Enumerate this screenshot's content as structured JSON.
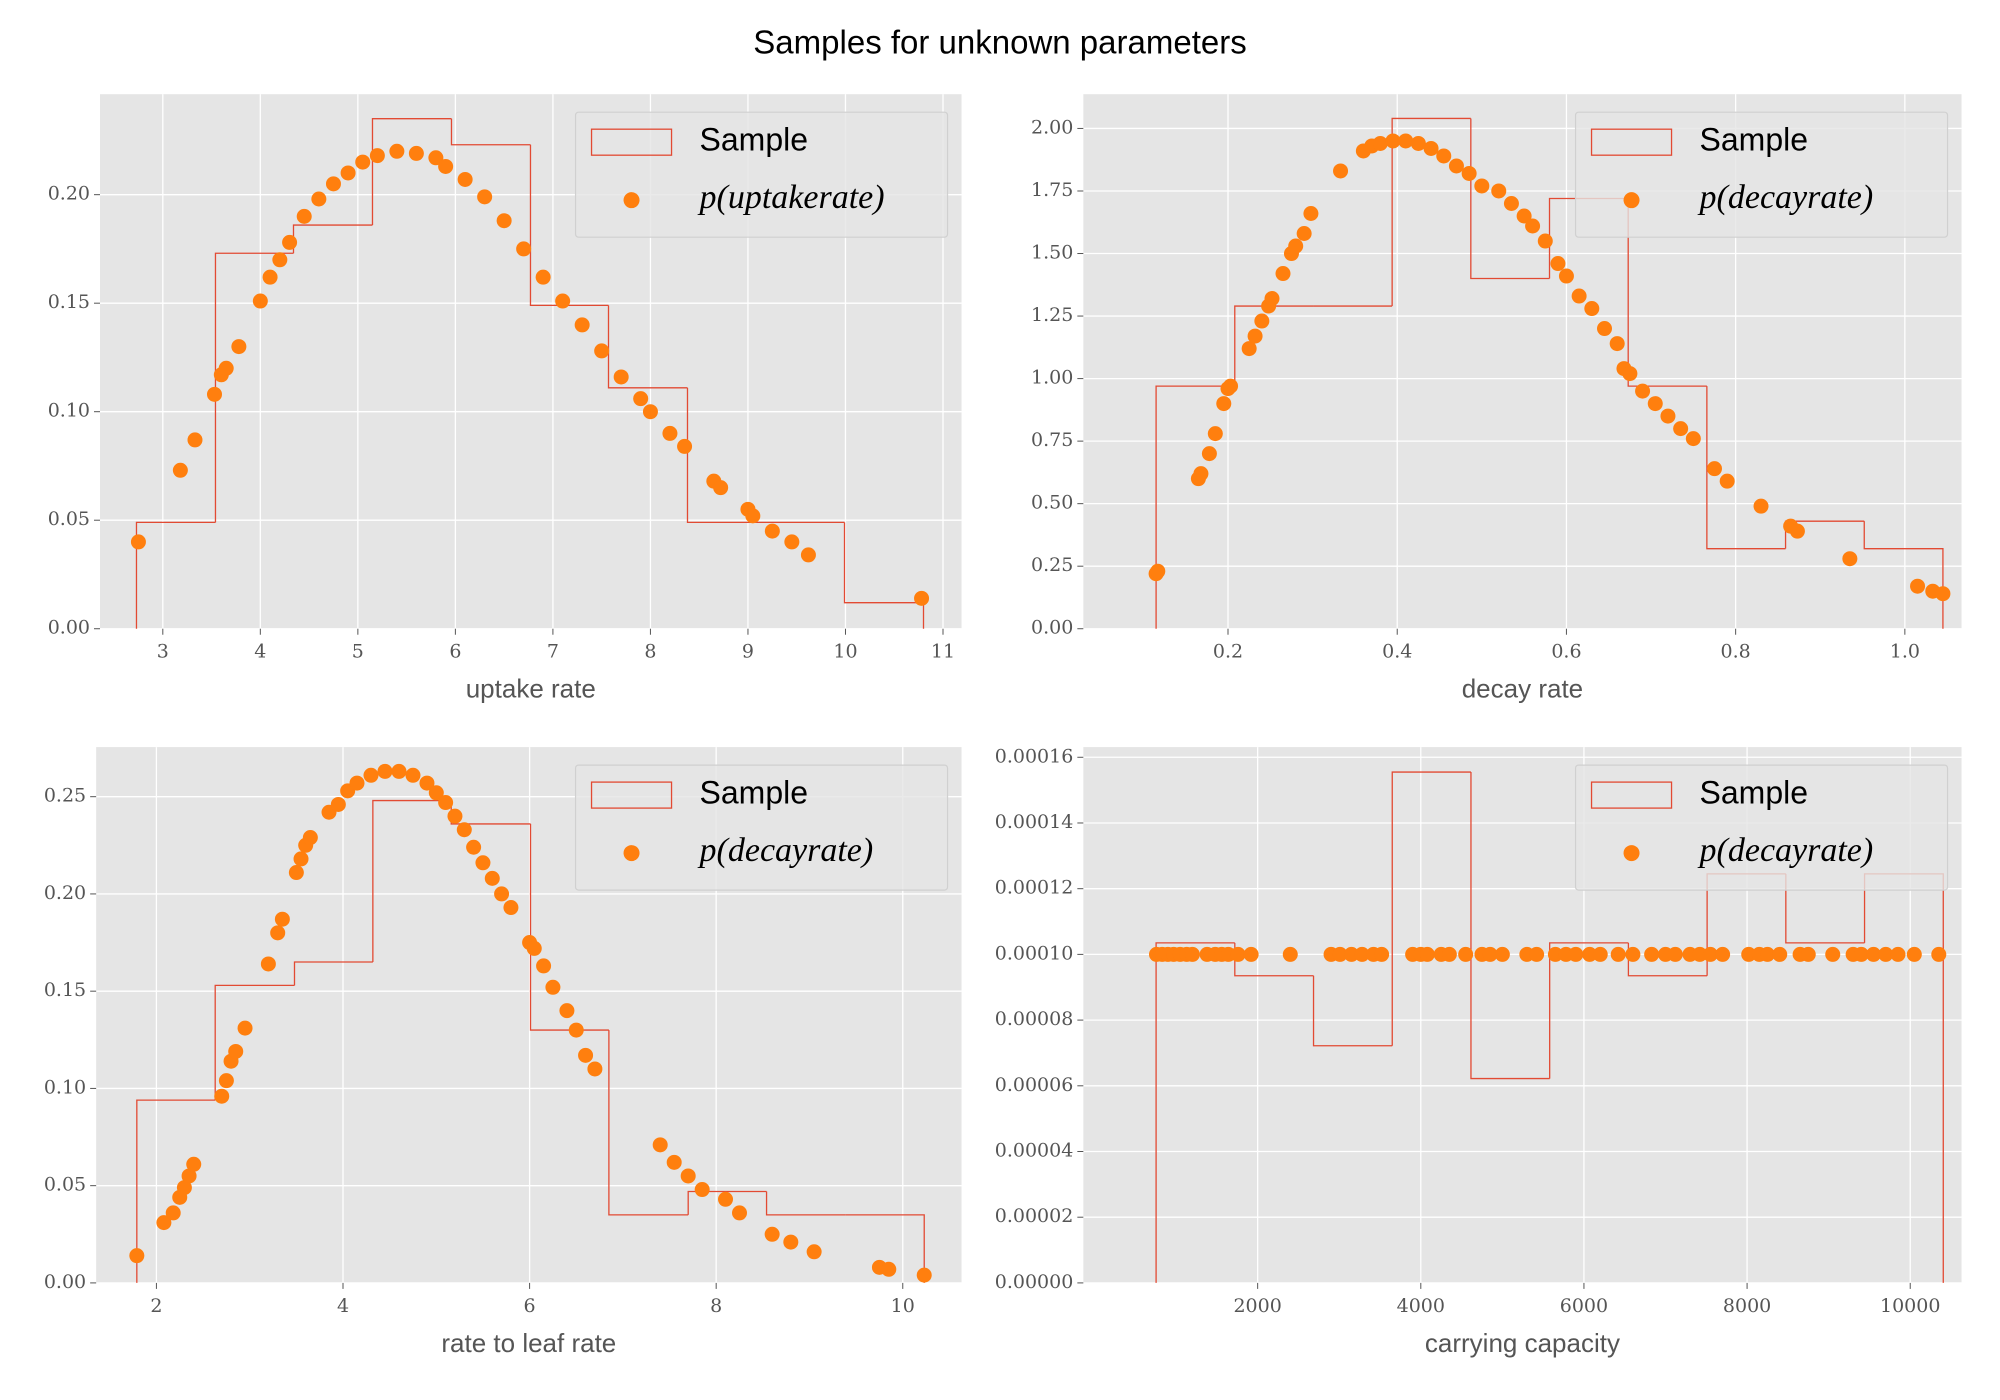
{
  "title": "Samples for unknown parameters",
  "chart_data": [
    {
      "type": "histogram",
      "xlabel": "uptake rate",
      "grid": true,
      "legend": "upper right",
      "xlim": [
        2.356,
        11.19
      ],
      "ylim": [
        0,
        0.2463
      ],
      "xticks": [
        3,
        4,
        5,
        6,
        7,
        8,
        9,
        10,
        11
      ],
      "yticks": [
        {
          "value": 0,
          "label": "0.00"
        },
        {
          "value": 0.05,
          "label": "0.05"
        },
        {
          "value": 0.1,
          "label": "0.10"
        },
        {
          "value": 0.15,
          "label": "0.15"
        },
        {
          "value": 0.2,
          "label": "0.20"
        }
      ],
      "series": [
        {
          "name": "Sample",
          "type": "histogram",
          "color": "#e24a33",
          "bins": [
            2.73,
            3.54,
            4.34,
            5.15,
            5.96,
            6.77,
            7.57,
            8.38,
            9.19,
            9.99,
            10.8
          ],
          "values": [
            0.049,
            0.173,
            0.186,
            0.235,
            0.223,
            0.149,
            0.111,
            0.049,
            0.049,
            0.012
          ]
        },
        {
          "name": "p(uptakerate)",
          "type": "scatter",
          "color": "#ff7f0e",
          "x": [
            2.75,
            3.18,
            3.33,
            3.53,
            3.6,
            3.65,
            3.78,
            4.0,
            4.1,
            4.2,
            4.3,
            4.45,
            4.6,
            4.75,
            4.9,
            5.05,
            5.2,
            5.4,
            5.6,
            5.8,
            5.9,
            6.1,
            6.3,
            6.5,
            6.7,
            6.9,
            7.1,
            7.3,
            7.5,
            7.7,
            7.9,
            8.0,
            8.2,
            8.35,
            8.65,
            8.72,
            9.0,
            9.05,
            9.25,
            9.45,
            9.62,
            10.78
          ],
          "values": [
            0.04,
            0.073,
            0.087,
            0.108,
            0.117,
            0.12,
            0.13,
            0.151,
            0.162,
            0.17,
            0.178,
            0.19,
            0.198,
            0.205,
            0.21,
            0.215,
            0.218,
            0.22,
            0.219,
            0.217,
            0.213,
            0.207,
            0.199,
            0.188,
            0.175,
            0.162,
            0.151,
            0.14,
            0.128,
            0.116,
            0.106,
            0.1,
            0.09,
            0.084,
            0.068,
            0.065,
            0.055,
            0.052,
            0.045,
            0.04,
            0.034,
            0.014
          ]
        }
      ]
    },
    {
      "type": "histogram",
      "xlabel": "decay rate",
      "grid": true,
      "legend": "upper right",
      "xlim": [
        0.029,
        1.067
      ],
      "ylim": [
        0,
        2.137
      ],
      "xticks": [
        0.2,
        0.4,
        0.6,
        0.8,
        {
          "value": 1,
          "label": "1.0"
        }
      ],
      "yticks": [
        {
          "value": 0,
          "label": "0.00"
        },
        {
          "value": 0.25,
          "label": "0.25"
        },
        {
          "value": 0.5,
          "label": "0.50"
        },
        {
          "value": 0.75,
          "label": "0.75"
        },
        {
          "value": 1,
          "label": "1.00"
        },
        {
          "value": 1.25,
          "label": "1.25"
        },
        {
          "value": 1.5,
          "label": "1.50"
        },
        {
          "value": 1.75,
          "label": "1.75"
        },
        {
          "value": 2,
          "label": "2.00"
        }
      ],
      "series": [
        {
          "name": "Sample",
          "type": "histogram",
          "color": "#e24a33",
          "bins": [
            0.115,
            0.208,
            0.301,
            0.394,
            0.487,
            0.58,
            0.673,
            0.766,
            0.859,
            0.952,
            1.045
          ],
          "values": [
            0.97,
            1.29,
            1.29,
            2.04,
            1.4,
            1.72,
            0.97,
            0.32,
            0.43,
            0.32
          ]
        },
        {
          "name": "p(decayrate)",
          "type": "scatter",
          "color": "#ff7f0e",
          "x": [
            0.115,
            0.117,
            0.165,
            0.168,
            0.178,
            0.185,
            0.195,
            0.2,
            0.203,
            0.225,
            0.232,
            0.24,
            0.248,
            0.252,
            0.265,
            0.275,
            0.28,
            0.29,
            0.298,
            0.333,
            0.36,
            0.37,
            0.38,
            0.395,
            0.41,
            0.425,
            0.44,
            0.455,
            0.47,
            0.485,
            0.5,
            0.52,
            0.535,
            0.55,
            0.56,
            0.575,
            0.59,
            0.6,
            0.615,
            0.63,
            0.645,
            0.66,
            0.668,
            0.675,
            0.69,
            0.705,
            0.72,
            0.735,
            0.75,
            0.775,
            0.79,
            0.83,
            0.865,
            0.873,
            0.935,
            1.015,
            1.033,
            1.045
          ],
          "values": [
            0.22,
            0.23,
            0.6,
            0.62,
            0.7,
            0.78,
            0.9,
            0.96,
            0.97,
            1.12,
            1.17,
            1.23,
            1.29,
            1.32,
            1.42,
            1.5,
            1.53,
            1.58,
            1.66,
            1.83,
            1.91,
            1.93,
            1.94,
            1.95,
            1.95,
            1.94,
            1.92,
            1.89,
            1.85,
            1.82,
            1.77,
            1.75,
            1.7,
            1.65,
            1.61,
            1.55,
            1.46,
            1.41,
            1.33,
            1.28,
            1.2,
            1.14,
            1.04,
            1.02,
            0.95,
            0.9,
            0.85,
            0.8,
            0.76,
            0.64,
            0.59,
            0.49,
            0.41,
            0.39,
            0.28,
            0.17,
            0.15,
            0.14
          ]
        }
      ]
    },
    {
      "type": "histogram",
      "xlabel": "rate to leaf rate",
      "grid": true,
      "legend": "upper right",
      "xlim": [
        1.354,
        10.63
      ],
      "ylim": [
        0,
        0.2755
      ],
      "xticks": [
        2,
        4,
        6,
        8,
        10
      ],
      "yticks": [
        {
          "value": 0,
          "label": "0.00"
        },
        {
          "value": 0.05,
          "label": "0.05"
        },
        {
          "value": 0.1,
          "label": "0.10"
        },
        {
          "value": 0.15,
          "label": "0.15"
        },
        {
          "value": 0.2,
          "label": "0.20"
        },
        {
          "value": 0.25,
          "label": "0.25"
        }
      ],
      "series": [
        {
          "name": "Sample",
          "type": "histogram",
          "color": "#e24a33",
          "bins": [
            1.79,
            2.63,
            3.48,
            4.32,
            5.16,
            6.01,
            6.85,
            7.7,
            8.54,
            9.39,
            10.23
          ],
          "values": [
            0.094,
            0.153,
            0.165,
            0.248,
            0.236,
            0.13,
            0.035,
            0.047,
            0.035,
            0.035
          ]
        },
        {
          "name": "p(decayrate)",
          "type": "scatter",
          "color": "#ff7f0e",
          "x": [
            1.79,
            2.08,
            2.18,
            2.25,
            2.3,
            2.35,
            2.4,
            2.7,
            2.75,
            2.8,
            2.85,
            2.95,
            3.2,
            3.3,
            3.35,
            3.5,
            3.55,
            3.6,
            3.65,
            3.85,
            3.95,
            4.05,
            4.15,
            4.3,
            4.45,
            4.6,
            4.75,
            4.9,
            5.0,
            5.1,
            5.2,
            5.3,
            5.4,
            5.5,
            5.6,
            5.7,
            5.8,
            6.0,
            6.05,
            6.15,
            6.25,
            6.4,
            6.5,
            6.6,
            6.7,
            7.4,
            7.55,
            7.7,
            7.85,
            8.1,
            8.25,
            8.6,
            8.8,
            9.05,
            9.75,
            9.85,
            10.23
          ],
          "values": [
            0.014,
            0.031,
            0.036,
            0.044,
            0.049,
            0.055,
            0.061,
            0.096,
            0.104,
            0.114,
            0.119,
            0.131,
            0.164,
            0.18,
            0.187,
            0.211,
            0.218,
            0.225,
            0.229,
            0.242,
            0.246,
            0.253,
            0.257,
            0.261,
            0.263,
            0.263,
            0.261,
            0.257,
            0.252,
            0.247,
            0.24,
            0.233,
            0.224,
            0.216,
            0.208,
            0.2,
            0.193,
            0.175,
            0.172,
            0.163,
            0.152,
            0.14,
            0.13,
            0.117,
            0.11,
            0.071,
            0.062,
            0.055,
            0.048,
            0.043,
            0.036,
            0.025,
            0.021,
            0.016,
            0.008,
            0.007,
            0.004
          ]
        }
      ]
    },
    {
      "type": "histogram",
      "xlabel": "carrying capacity",
      "grid": true,
      "legend": "upper right",
      "xlim": [
        -137,
        10629
      ],
      "ylim": [
        0,
        0.0001631
      ],
      "xticks": [
        2000,
        4000,
        6000,
        8000,
        10000
      ],
      "yticks": [
        {
          "value": 0,
          "label": "0.00000"
        },
        {
          "value": 2e-05,
          "label": "0.00002"
        },
        {
          "value": 4e-05,
          "label": "0.00004"
        },
        {
          "value": 6e-05,
          "label": "0.00006"
        },
        {
          "value": 8e-05,
          "label": "0.00008"
        },
        {
          "value": 0.0001,
          "label": "0.00010"
        },
        {
          "value": 0.00012,
          "label": "0.00012"
        },
        {
          "value": 0.00014,
          "label": "0.00014"
        },
        {
          "value": 0.00016,
          "label": "0.00016"
        }
      ],
      "series": [
        {
          "name": "Sample",
          "type": "histogram",
          "color": "#e24a33",
          "bins": [
            755,
            1720,
            2685,
            3650,
            4615,
            5580,
            6545,
            7510,
            8475,
            9440,
            10405
          ],
          "values": [
            0.0001035,
            9.35e-05,
            7.22e-05,
            0.0001555,
            6.22e-05,
            0.0001035,
            9.35e-05,
            0.0001245,
            0.0001035,
            0.0001245
          ]
        },
        {
          "name": "p(decayrate)",
          "type": "scatter",
          "color": "#ff7f0e",
          "x": [
            760,
            830,
            900,
            970,
            1050,
            1130,
            1200,
            1380,
            1480,
            1560,
            1640,
            1760,
            1920,
            2400,
            2900,
            3010,
            3150,
            3280,
            3420,
            3520,
            3900,
            4000,
            4080,
            4250,
            4350,
            4550,
            4750,
            4850,
            5000,
            5300,
            5420,
            5650,
            5780,
            5900,
            6070,
            6200,
            6420,
            6600,
            6830,
            7000,
            7120,
            7300,
            7420,
            7550,
            7700,
            8020,
            8150,
            8250,
            8400,
            8650,
            8750,
            9050,
            9300,
            9400,
            9550,
            9700,
            9850,
            10050,
            10350
          ],
          "values": [
            0.0001,
            0.0001,
            0.0001,
            0.0001,
            0.0001,
            0.0001,
            0.0001,
            0.0001,
            0.0001,
            0.0001,
            0.0001,
            0.0001,
            0.0001,
            0.0001,
            0.0001,
            0.0001,
            0.0001,
            0.0001,
            0.0001,
            0.0001,
            0.0001,
            0.0001,
            0.0001,
            0.0001,
            0.0001,
            0.0001,
            0.0001,
            0.0001,
            0.0001,
            0.0001,
            0.0001,
            0.0001,
            0.0001,
            0.0001,
            0.0001,
            0.0001,
            0.0001,
            0.0001,
            0.0001,
            0.0001,
            0.0001,
            0.0001,
            0.0001,
            0.0001,
            0.0001,
            0.0001,
            0.0001,
            0.0001,
            0.0001,
            0.0001,
            0.0001,
            0.0001,
            0.0001,
            0.0001,
            0.0001,
            0.0001,
            0.0001,
            0.0001,
            0.0001
          ]
        }
      ]
    }
  ]
}
